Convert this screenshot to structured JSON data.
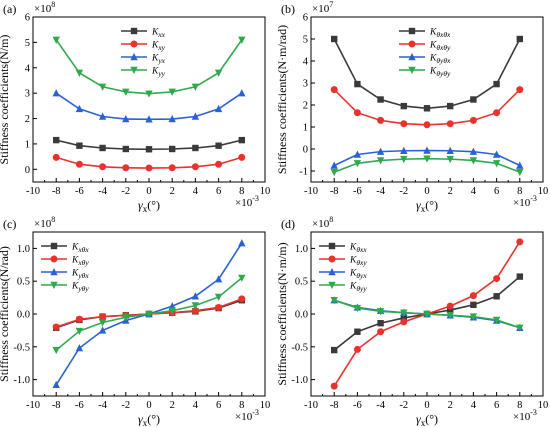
{
  "chart_data": [
    {
      "type": "line",
      "panel_label": "(a)",
      "ylabel": "Stiffness coefficients(N/m)",
      "xlabel": "γx(°)",
      "y_exponent": "× 10^8",
      "x_exponent": "× 10^-3",
      "xlim": [
        -10,
        10
      ],
      "ylim": [
        -0.5,
        6
      ],
      "xticks": [
        -10,
        -8,
        -6,
        -4,
        -2,
        0,
        2,
        4,
        6,
        8,
        10
      ],
      "yticks": [
        0,
        1,
        2,
        3,
        4,
        5,
        6
      ],
      "legend_position": "top-center",
      "x": [
        -8,
        -6,
        -4,
        -2,
        0,
        2,
        4,
        6,
        8
      ],
      "series": [
        {
          "name": "Kxx",
          "color": "#3a3a3a",
          "marker": "square",
          "values": [
            1.15,
            0.93,
            0.84,
            0.8,
            0.79,
            0.8,
            0.84,
            0.93,
            1.15
          ]
        },
        {
          "name": "Kxy",
          "color": "#e8332d",
          "marker": "circle",
          "values": [
            0.47,
            0.2,
            0.1,
            0.06,
            0.05,
            0.06,
            0.1,
            0.2,
            0.47
          ]
        },
        {
          "name": "Kyx",
          "color": "#2a62d3",
          "marker": "triangle-up",
          "values": [
            3.0,
            2.38,
            2.08,
            1.98,
            1.97,
            1.98,
            2.08,
            2.38,
            3.0
          ]
        },
        {
          "name": "Kyy",
          "color": "#2eaa4c",
          "marker": "triangle-down",
          "values": [
            5.1,
            3.8,
            3.25,
            3.05,
            2.98,
            3.05,
            3.25,
            3.8,
            5.1
          ]
        }
      ]
    },
    {
      "type": "line",
      "panel_label": "(b)",
      "ylabel": "Stiffness coefficients(N·m/rad)",
      "xlabel": "γx(°)",
      "y_exponent": "× 10^7",
      "x_exponent": "× 10^-3",
      "xlim": [
        -10,
        10
      ],
      "ylim": [
        -1.5,
        6
      ],
      "xticks": [
        -10,
        -8,
        -6,
        -4,
        -2,
        0,
        2,
        4,
        6,
        8,
        10
      ],
      "yticks": [
        -1,
        0,
        1,
        2,
        3,
        4,
        5,
        6
      ],
      "legend_position": "top-center",
      "x": [
        -8,
        -6,
        -4,
        -2,
        0,
        2,
        4,
        6,
        8
      ],
      "series": [
        {
          "name": "Kθxθx",
          "color": "#3a3a3a",
          "marker": "square",
          "values": [
            5.0,
            2.95,
            2.25,
            1.95,
            1.85,
            1.95,
            2.25,
            2.95,
            5.0
          ]
        },
        {
          "name": "Kθxθy",
          "color": "#e8332d",
          "marker": "circle",
          "values": [
            2.7,
            1.65,
            1.3,
            1.15,
            1.1,
            1.15,
            1.3,
            1.65,
            2.7
          ]
        },
        {
          "name": "Kθyθx",
          "color": "#2a62d3",
          "marker": "triangle-up",
          "values": [
            -0.75,
            -0.25,
            -0.12,
            -0.08,
            -0.07,
            -0.08,
            -0.12,
            -0.25,
            -0.75
          ]
        },
        {
          "name": "Kθyθy",
          "color": "#2eaa4c",
          "marker": "triangle-down",
          "values": [
            -1.05,
            -0.65,
            -0.52,
            -0.46,
            -0.44,
            -0.46,
            -0.52,
            -0.65,
            -1.05
          ]
        }
      ]
    },
    {
      "type": "line",
      "panel_label": "(c)",
      "ylabel": "Stiffness coefficients(N/rad)",
      "xlabel": "γx(°)",
      "y_exponent": "× 10^8",
      "x_exponent": "× 10^-3",
      "xlim": [
        -10,
        10
      ],
      "ylim": [
        -1.25,
        1.25
      ],
      "xticks": [
        -10,
        -8,
        -6,
        -4,
        -2,
        0,
        2,
        4,
        6,
        8,
        10
      ],
      "yticks": [
        -1.0,
        -0.5,
        0.0,
        0.5,
        1.0
      ],
      "legend_position": "top-left",
      "x": [
        -8,
        -6,
        -4,
        -2,
        0,
        2,
        4,
        6,
        8
      ],
      "series": [
        {
          "name": "Kxθx",
          "color": "#3a3a3a",
          "marker": "square",
          "values": [
            -0.21,
            -0.09,
            -0.04,
            -0.02,
            0.0,
            0.02,
            0.04,
            0.09,
            0.21
          ]
        },
        {
          "name": "Kxθy",
          "color": "#e8332d",
          "marker": "circle",
          "values": [
            -0.2,
            -0.08,
            -0.04,
            -0.02,
            0.0,
            0.02,
            0.05,
            0.1,
            0.23
          ]
        },
        {
          "name": "Kyθx",
          "color": "#2a62d3",
          "marker": "triangle-up",
          "values": [
            -1.08,
            -0.52,
            -0.25,
            -0.1,
            0.0,
            0.12,
            0.27,
            0.53,
            1.08
          ]
        },
        {
          "name": "Kyθy",
          "color": "#2eaa4c",
          "marker": "triangle-down",
          "values": [
            -0.55,
            -0.26,
            -0.13,
            -0.05,
            0.0,
            0.05,
            0.13,
            0.26,
            0.55
          ]
        }
      ]
    },
    {
      "type": "line",
      "panel_label": "(d)",
      "ylabel": "Stiffness coefficients(N·m/m)",
      "xlabel": "γx(°)",
      "y_exponent": "× 10^8",
      "x_exponent": "× 10^-3",
      "xlim": [
        -10,
        10
      ],
      "ylim": [
        -1.25,
        1.25
      ],
      "xticks": [
        -10,
        -8,
        -6,
        -4,
        -2,
        0,
        2,
        4,
        6,
        8,
        10
      ],
      "yticks": [
        -1.0,
        -0.5,
        0.0,
        0.5,
        1.0
      ],
      "legend_position": "top-left",
      "x": [
        -8,
        -6,
        -4,
        -2,
        0,
        2,
        4,
        6,
        8
      ],
      "series": [
        {
          "name": "Kθxx",
          "color": "#3a3a3a",
          "marker": "square",
          "values": [
            -0.55,
            -0.27,
            -0.14,
            -0.06,
            0.0,
            0.06,
            0.14,
            0.27,
            0.57
          ]
        },
        {
          "name": "Kθxy",
          "color": "#e8332d",
          "marker": "circle",
          "values": [
            -1.1,
            -0.54,
            -0.27,
            -0.12,
            0.0,
            0.12,
            0.28,
            0.54,
            1.1
          ]
        },
        {
          "name": "Kθyx",
          "color": "#2a62d3",
          "marker": "triangle-up",
          "values": [
            0.21,
            0.1,
            0.05,
            0.02,
            0.0,
            -0.02,
            -0.05,
            -0.1,
            -0.21
          ]
        },
        {
          "name": "Kθyy",
          "color": "#2eaa4c",
          "marker": "triangle-down",
          "values": [
            0.21,
            0.09,
            0.04,
            0.02,
            0.0,
            -0.02,
            -0.04,
            -0.09,
            -0.21
          ]
        }
      ]
    }
  ]
}
